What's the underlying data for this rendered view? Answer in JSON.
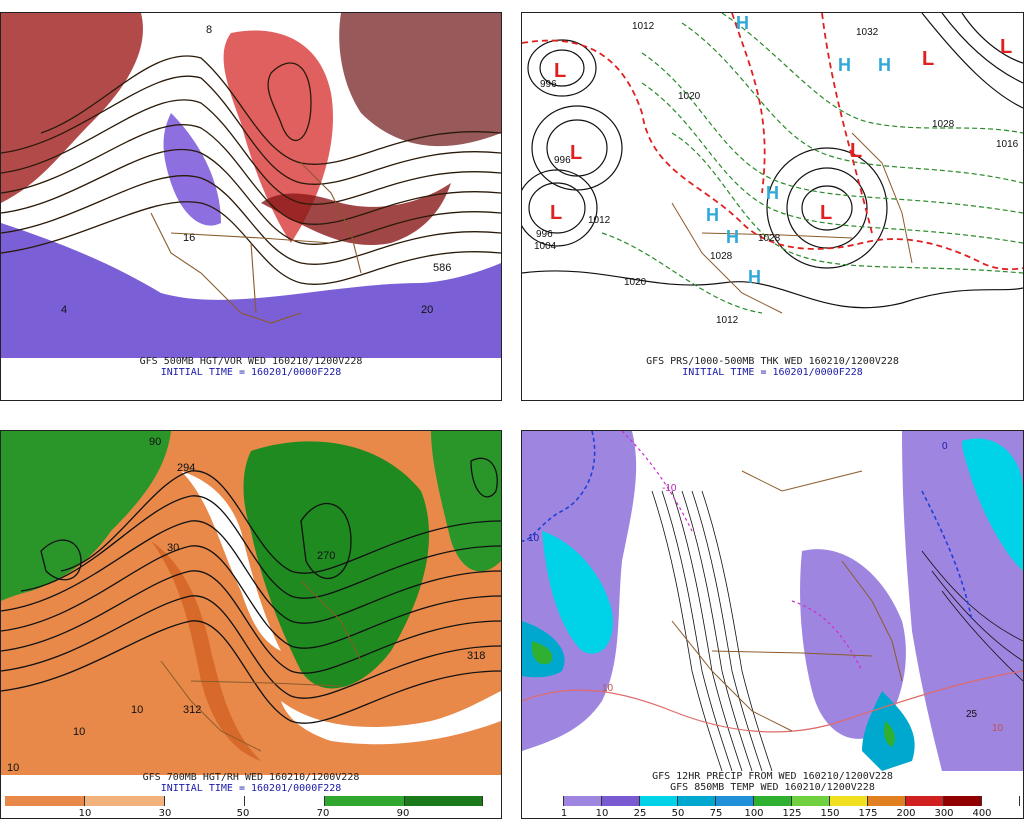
{
  "panels": [
    {
      "id": "p1",
      "caption_line1": "GFS 500MB HGT/VOR WED 160210/1200V228",
      "caption_line2": "INITIAL TIME = 160201/0000F228",
      "labels": [
        "8",
        "8",
        "16",
        "16",
        "20",
        "4",
        "4",
        "4",
        "586",
        "8"
      ],
      "fill_colors": [
        "#7b5fd6",
        "#a886e0",
        "#f08080",
        "#d53a3a",
        "#8a1818"
      ]
    },
    {
      "id": "p2",
      "caption_line1": "GFS PRS/1000-500MB THK WED 160210/1200V228",
      "caption_line2": "INITIAL TIME = 160201/0000F228",
      "high_label": "H",
      "low_label": "L",
      "isobar_labels": [
        "1012",
        "996",
        "996",
        "1012",
        "996",
        "1004",
        "1020",
        "1028",
        "1028",
        "1020",
        "1028",
        "1032",
        "1016",
        "1012"
      ]
    },
    {
      "id": "p3",
      "caption_line1": "GFS 700MB HGT/RH WED 160210/1200V228",
      "caption_line2": "INITIAL TIME = 160201/0000F228",
      "labels": [
        "10",
        "10",
        "10",
        "30",
        "70",
        "90",
        "270",
        "318",
        "312",
        "294"
      ],
      "colorbar": {
        "labels": [
          "10",
          "30",
          "50",
          "70",
          "90"
        ],
        "colors": [
          "#e8894a",
          "#f2b27c",
          "#ffffff",
          "#ffffff",
          "#30a830",
          "#1a7a1a"
        ]
      }
    },
    {
      "id": "p4",
      "caption_line1": "GFS 12HR PRECIP FROM WED 160210/1200V228",
      "caption_line2": "GFS 850MB TEMP WED 160210/1200V228",
      "labels": [
        "10",
        "10",
        "0",
        "-10",
        "10",
        "25"
      ],
      "colorbar": {
        "labels": [
          "1",
          "10",
          "25",
          "50",
          "75",
          "100",
          "125",
          "150",
          "175",
          "200",
          "300",
          "400"
        ],
        "colors": [
          "#ffffff",
          "#9e86e0",
          "#7a5ad0",
          "#00d2e8",
          "#00a8d0",
          "#2090d8",
          "#30b030",
          "#70d040",
          "#f0e020",
          "#e08020",
          "#d02020",
          "#900000",
          "#ffffff"
        ]
      }
    }
  ]
}
